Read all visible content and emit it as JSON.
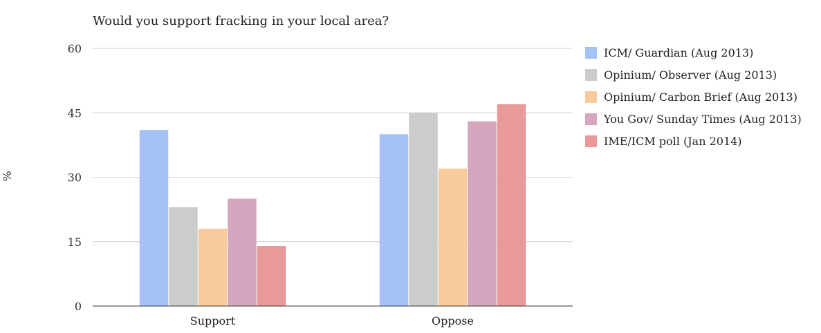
{
  "chart_data": {
    "type": "bar",
    "title": "Would you support fracking in your local area?",
    "ylabel": "%",
    "xlabel": "",
    "categories": [
      "Support",
      "Oppose"
    ],
    "ylim": [
      0,
      60
    ],
    "yticks": [
      "0",
      "15",
      "30",
      "45",
      "60"
    ],
    "grid": true,
    "legend_position": "right",
    "series": [
      {
        "name": "ICM/ Guardian (Aug 2013)",
        "values": [
          41,
          40
        ],
        "color": "#a4c2f4"
      },
      {
        "name": "Opinium/ Observer (Aug 2013)",
        "values": [
          23,
          45
        ],
        "color": "#cccccc"
      },
      {
        "name": "Opinium/ Carbon Brief (Aug 2013)",
        "values": [
          18,
          32
        ],
        "color": "#f9cb9c"
      },
      {
        "name": "You Gov/ Sunday Times (Aug 2013)",
        "values": [
          25,
          43
        ],
        "color": "#d5a6bd"
      },
      {
        "name": "IME/ICM poll (Jan 2014)",
        "values": [
          14,
          47
        ],
        "color": "#ea9999"
      }
    ]
  }
}
